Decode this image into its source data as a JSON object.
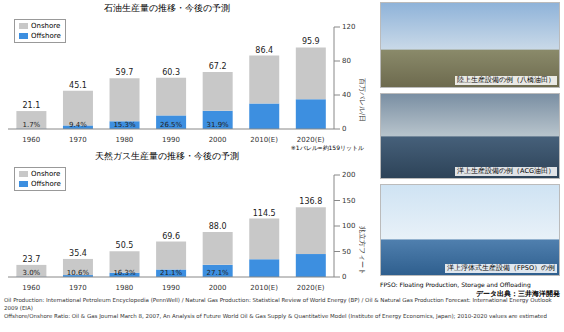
{
  "chart_data": [
    {
      "type": "bar",
      "title": "石油生産量の推移・今後の予測",
      "stacked": true,
      "legend": "upper left",
      "grid": false,
      "categories": [
        "1960",
        "1970",
        "1980",
        "1990",
        "2000",
        "2010(E)",
        "2020(E)"
      ],
      "series": [
        {
          "name": "Onshore",
          "color": "#c8c8c8",
          "values": [
            20.7,
            40.9,
            50.6,
            44.3,
            45.8,
            56.4,
            60.9
          ]
        },
        {
          "name": "Offshore",
          "color": "#3d8fe0",
          "values": [
            0.4,
            4.2,
            9.1,
            16.0,
            21.4,
            30.0,
            35.0
          ]
        }
      ],
      "total_labels": [
        "21.1",
        "45.1",
        "59.7",
        "60.3",
        "67.2",
        "86.4",
        "95.9"
      ],
      "share_labels": [
        "1.7%",
        "9.4%",
        "15.3%",
        "26.5%",
        "31.9%",
        null,
        null
      ],
      "ylim": [
        0,
        120
      ],
      "yticks": [
        0,
        40,
        80,
        120
      ],
      "y_label": "百万バレル/日",
      "note": "※1バレル=約159リットル"
    },
    {
      "type": "bar",
      "title": "天然ガス生産量の推移・今後の予測",
      "stacked": true,
      "legend": "upper left",
      "grid": false,
      "categories": [
        "1960",
        "1970",
        "1980",
        "1990",
        "2000",
        "2010(E)",
        "2020(E)"
      ],
      "series": [
        {
          "name": "Onshore",
          "color": "#c8c8c8",
          "values": [
            23.0,
            31.6,
            42.3,
            54.9,
            64.2,
            79.5,
            91.8
          ]
        },
        {
          "name": "Offshore",
          "color": "#3d8fe0",
          "values": [
            0.7,
            3.8,
            8.2,
            14.7,
            23.8,
            35.0,
            45.0
          ]
        }
      ],
      "total_labels": [
        "23.7",
        "35.4",
        "50.5",
        "69.6",
        "88.0",
        "114.5",
        "136.8"
      ],
      "share_labels": [
        "3.0%",
        "10.6%",
        "16.3%",
        "21.1%",
        "27.1%",
        null,
        null
      ],
      "ylim": [
        0,
        200
      ],
      "yticks": [
        0,
        50,
        100,
        150,
        200
      ],
      "y_label": "兆立方フィート"
    }
  ],
  "panels": [
    {
      "caption": "陸上生産設備の例（八橋油田）"
    },
    {
      "caption": "洋上生産設備の例（ACG油田）"
    },
    {
      "caption": "洋上浮体式生産設備（FPSO）の例"
    }
  ],
  "fpso_note": "FPSO: Floating Production, Storage and Offloading",
  "source": "データ出典：三井海洋開発",
  "footnotes": [
    "Oil Production: International Petroleum Encyclopedia (PennWell)  /  Natural Gas Production: Statistical Review of World Energy (BP)  /  Oil & Natural Gas Production Forecast: International Energy Outlook 2009 (EIA)",
    "Offshore/Onshore Ratio: Oil & Gas Journal March 8, 2007, An Analysis of Future World Oil & Gas Supply & Quantitative Model (Institute of Energy Economics, Japan); 2010-2020 values are estimated"
  ]
}
